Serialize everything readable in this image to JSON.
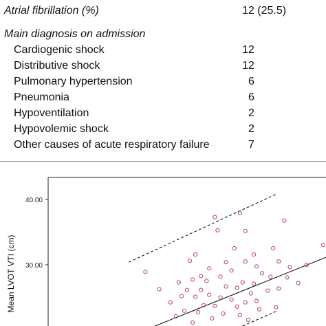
{
  "table": {
    "rows": [
      {
        "label": "Atrial fibrillation (%)",
        "value": "12 (25.5)",
        "style": "italic"
      },
      {
        "label": "Main diagnosis on admission",
        "value": "",
        "style": "italic"
      },
      {
        "label": "Cardiogenic shock",
        "value": "12",
        "style": "indent"
      },
      {
        "label": "Distributive shock",
        "value": "12",
        "style": "indent"
      },
      {
        "label": "Pulmonary hypertension",
        "value": "6",
        "style": "indent"
      },
      {
        "label": "Pneumonia",
        "value": "6",
        "style": "indent"
      },
      {
        "label": "Hypoventilation",
        "value": "2",
        "style": "indent"
      },
      {
        "label": "Hypovolemic shock",
        "value": "2",
        "style": "indent"
      },
      {
        "label": "Other causes of acute respiratory failure",
        "value": "7",
        "style": "indent"
      }
    ]
  },
  "chart_data": {
    "type": "scatter",
    "ylabel": "Mean LVOT VTI (cm)",
    "yticks": [
      "30.00",
      "40.00"
    ],
    "y_range_visible": [
      18.8,
      42.0
    ],
    "x_range_visible": [
      0.0,
      1.0
    ],
    "x_axis_labels_visible": false,
    "colors": {
      "points": "#b8455e",
      "lines": "#000000",
      "axis": "#222222"
    },
    "regression_line": [
      {
        "x": 0.385,
        "y": 18.8
      },
      {
        "x": 1.0,
        "y": 28.7
      }
    ],
    "upper_limit_line": [
      {
        "x": 0.29,
        "y": 28.0
      },
      {
        "x": 0.82,
        "y": 37.8
      }
    ],
    "lower_limit_line": [
      {
        "x": 0.7,
        "y": 18.8
      },
      {
        "x": 0.82,
        "y": 20.9
      }
    ],
    "points": [
      {
        "x": 0.69,
        "y": 35.1
      },
      {
        "x": 0.6,
        "y": 34.5
      },
      {
        "x": 0.85,
        "y": 34.0
      },
      {
        "x": 0.71,
        "y": 32.5
      },
      {
        "x": 0.61,
        "y": 32.6
      },
      {
        "x": 0.99,
        "y": 30.5
      },
      {
        "x": 0.67,
        "y": 30.0
      },
      {
        "x": 0.81,
        "y": 30.0
      },
      {
        "x": 0.53,
        "y": 29.1
      },
      {
        "x": 0.74,
        "y": 29.1
      },
      {
        "x": 0.51,
        "y": 28.2
      },
      {
        "x": 0.64,
        "y": 28.0
      },
      {
        "x": 0.71,
        "y": 28.1
      },
      {
        "x": 0.83,
        "y": 28.1
      },
      {
        "x": 0.35,
        "y": 26.6
      },
      {
        "x": 0.75,
        "y": 27.4
      },
      {
        "x": 0.87,
        "y": 27.3
      },
      {
        "x": 0.93,
        "y": 27.6
      },
      {
        "x": 0.58,
        "y": 27.1
      },
      {
        "x": 0.66,
        "y": 26.8
      },
      {
        "x": 0.77,
        "y": 26.4
      },
      {
        "x": 0.8,
        "y": 25.9
      },
      {
        "x": 0.86,
        "y": 25.8
      },
      {
        "x": 0.55,
        "y": 26.0
      },
      {
        "x": 0.62,
        "y": 25.9
      },
      {
        "x": 0.47,
        "y": 25.1
      },
      {
        "x": 0.52,
        "y": 25.5
      },
      {
        "x": 0.57,
        "y": 25.3
      },
      {
        "x": 0.7,
        "y": 25.1
      },
      {
        "x": 0.74,
        "y": 24.9
      },
      {
        "x": 0.9,
        "y": 25.0
      },
      {
        "x": 0.4,
        "y": 24.1
      },
      {
        "x": 0.5,
        "y": 24.0
      },
      {
        "x": 0.55,
        "y": 24.0
      },
      {
        "x": 0.64,
        "y": 24.5
      },
      {
        "x": 0.68,
        "y": 24.3
      },
      {
        "x": 0.73,
        "y": 23.5
      },
      {
        "x": 0.79,
        "y": 23.9
      },
      {
        "x": 0.83,
        "y": 24.2
      },
      {
        "x": 0.48,
        "y": 23.1
      },
      {
        "x": 0.53,
        "y": 23.0
      },
      {
        "x": 0.58,
        "y": 23.3
      },
      {
        "x": 0.62,
        "y": 22.9
      },
      {
        "x": 0.66,
        "y": 22.6
      },
      {
        "x": 0.71,
        "y": 22.2
      },
      {
        "x": 0.75,
        "y": 22.4
      },
      {
        "x": 0.44,
        "y": 22.2
      },
      {
        "x": 0.56,
        "y": 21.8
      },
      {
        "x": 0.6,
        "y": 21.7
      },
      {
        "x": 0.68,
        "y": 21.6
      },
      {
        "x": 0.76,
        "y": 21.2
      },
      {
        "x": 0.82,
        "y": 21.5
      },
      {
        "x": 0.49,
        "y": 21.0
      },
      {
        "x": 0.54,
        "y": 20.8
      },
      {
        "x": 0.63,
        "y": 20.6
      },
      {
        "x": 0.69,
        "y": 20.4
      },
      {
        "x": 0.46,
        "y": 20.2
      },
      {
        "x": 0.59,
        "y": 19.9
      },
      {
        "x": 0.72,
        "y": 19.7
      },
      {
        "x": 0.52,
        "y": 19.3
      }
    ]
  }
}
